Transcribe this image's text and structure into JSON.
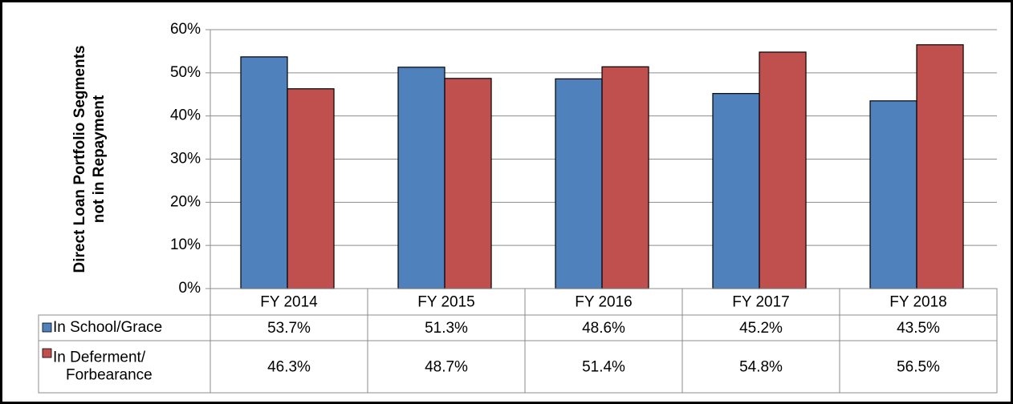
{
  "chart_data": {
    "type": "bar",
    "ylabel": [
      "Direct Loan Portfolio Segments",
      "not in Repayment"
    ],
    "categories": [
      "FY 2014",
      "FY 2015",
      "FY 2016",
      "FY 2017",
      "FY 2018"
    ],
    "series": [
      {
        "name": "In School/Grace",
        "color": "#4f81bd",
        "values": [
          53.7,
          51.3,
          48.6,
          45.2,
          43.5
        ],
        "value_labels": [
          "53.7%",
          "51.3%",
          "48.6%",
          "45.2%",
          "43.5%"
        ]
      },
      {
        "name": "In Deferment/ Forbearance",
        "color": "#c0504d",
        "values": [
          46.3,
          48.7,
          51.4,
          54.8,
          56.5
        ],
        "value_labels": [
          "46.3%",
          "48.7%",
          "51.4%",
          "54.8%",
          "56.5%"
        ]
      }
    ],
    "ylim": [
      0,
      60
    ],
    "yticks": [
      {
        "value": 0,
        "label": "0%"
      },
      {
        "value": 10,
        "label": "10%"
      },
      {
        "value": 20,
        "label": "20%"
      },
      {
        "value": 30,
        "label": "30%"
      },
      {
        "value": 40,
        "label": "40%"
      },
      {
        "value": 50,
        "label": "50%"
      },
      {
        "value": 60,
        "label": "60%"
      }
    ],
    "grid": true
  }
}
